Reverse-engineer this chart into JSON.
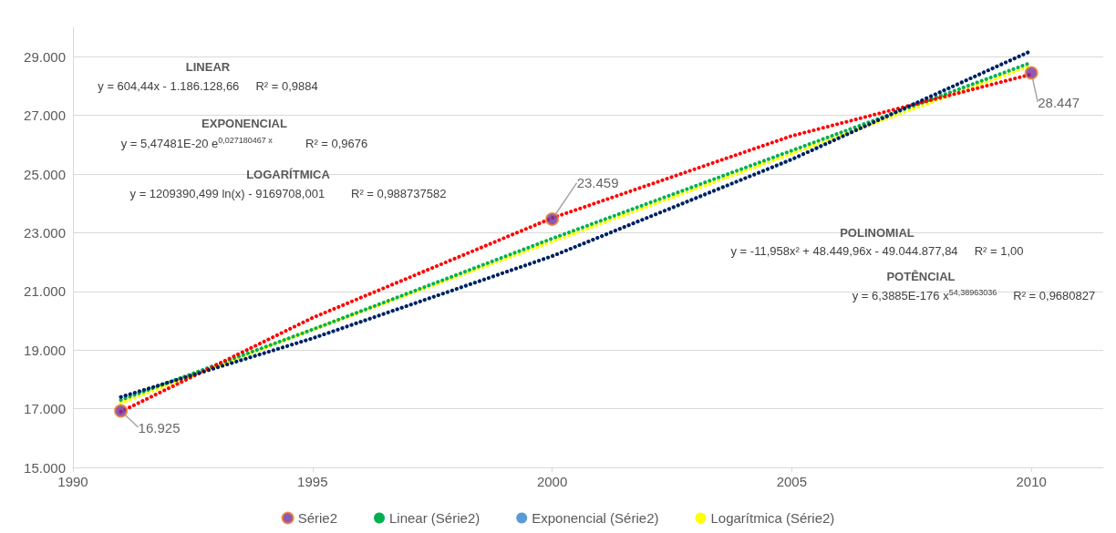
{
  "chart_data": {
    "type": "scatter",
    "xlim": [
      1990,
      2011.5
    ],
    "xticks": [
      1990,
      1995,
      2000,
      2005,
      2010
    ],
    "ylim": [
      15000,
      30000
    ],
    "yticks": [
      {
        "value": 15000,
        "label": "15.000"
      },
      {
        "value": 17000,
        "label": "17.000"
      },
      {
        "value": 19000,
        "label": "19.000"
      },
      {
        "value": 21000,
        "label": "21.000"
      },
      {
        "value": 23000,
        "label": "23.000"
      },
      {
        "value": 25000,
        "label": "25.000"
      },
      {
        "value": 27000,
        "label": "27.000"
      },
      {
        "value": 29000,
        "label": "29.000"
      }
    ],
    "grid": "y",
    "legend": "bottom",
    "series": [
      {
        "name": "Série2",
        "color": "#7030a0",
        "marker": "circle",
        "x": [
          1991,
          2000,
          2010
        ],
        "values": [
          16925,
          23459,
          28447
        ],
        "value_labels": [
          "16.925",
          "23.459",
          "28.447"
        ]
      },
      {
        "type": "line",
        "name": "Linear (Série2)",
        "color": "#00b050",
        "line_style": "dotted",
        "marker": "none",
        "x": [
          1991,
          1995,
          2000,
          2005,
          2010
        ],
        "values": [
          17300,
          19700,
          22800,
          25800,
          28800
        ]
      },
      {
        "type": "line",
        "name": "Exponencial (Série2)",
        "color": "#5b9bd5",
        "line_style": "dotted",
        "marker": "none",
        "x": [
          1991,
          1995,
          2000,
          2005,
          2010
        ],
        "values": [
          17400,
          19400,
          22200,
          25500,
          29200
        ]
      },
      {
        "type": "line",
        "name": "Logarítmica (Série2)",
        "color": "#ffff00",
        "line_style": "dotted",
        "marker": "none",
        "x": [
          1991,
          1995,
          2000,
          2005,
          2010
        ],
        "values": [
          17200,
          19700,
          22700,
          25700,
          28700
        ]
      },
      {
        "type": "line",
        "color": "#ff0000",
        "line_style": "dotted",
        "marker": "none",
        "x": [
          1991,
          1995,
          2000,
          2005,
          2010
        ],
        "values": [
          16900,
          20100,
          23500,
          26300,
          28400
        ]
      },
      {
        "type": "line",
        "color": "#002060",
        "line_style": "dotted",
        "marker": "none",
        "x": [
          1991,
          1995,
          2000,
          2005,
          2010
        ],
        "values": [
          17400,
          19400,
          22200,
          25500,
          29200
        ]
      }
    ],
    "annotations": [
      "LINEAR",
      "y = 604,44x - 1.186.128,66     R² = 0,9884",
      "EXPONENCIAL",
      "y = 5,47481E-20 e$^{0,027180467 x}$          R² = 0,9676",
      "LOGARÍTMICA",
      "y = 1209390,499 ln(x) - 9169708,001        R² = 0,988737582",
      "POLINOMIAL",
      "y = -11,958x² + 48.449,96x - 49.044.877,84     R² = 1,00",
      "POTÊNCIAL",
      "y = 6,3885E-176 x$^{54,38963036}$     R² = 0,9680827"
    ]
  }
}
